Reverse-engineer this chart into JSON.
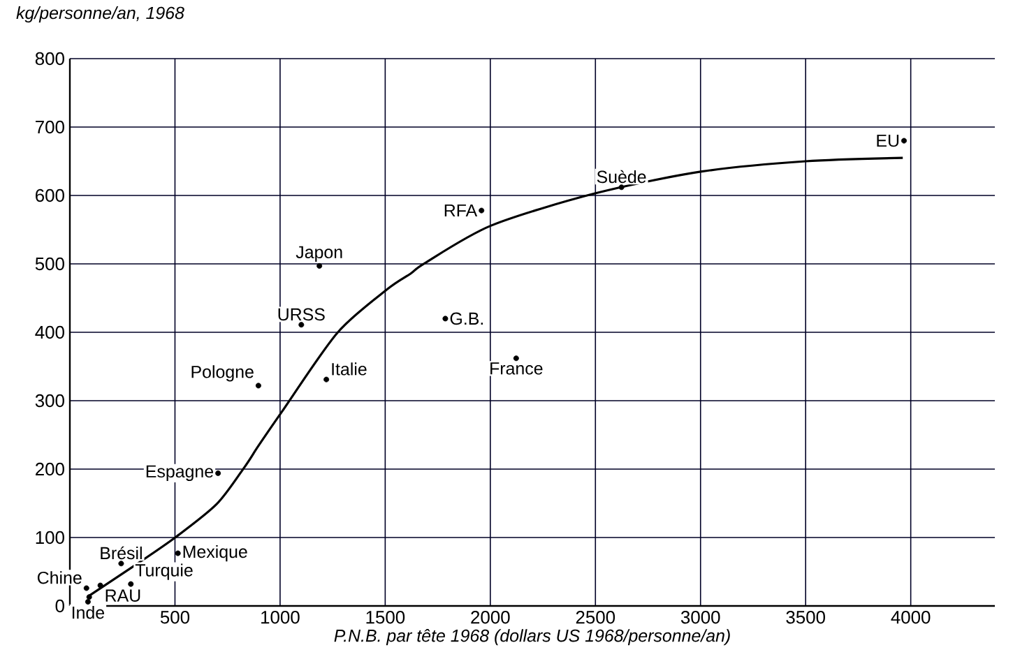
{
  "chart_data": {
    "type": "scatter",
    "ylabel": "kg/personne/an, 1968",
    "xlabel": "P.N.B. par tête 1968 (dollars US 1968/personne/an)",
    "xlim": [
      0,
      4400
    ],
    "ylim": [
      0,
      800
    ],
    "xticks": [
      500,
      1000,
      1500,
      2000,
      2500,
      3000,
      3500,
      4000
    ],
    "yticks": [
      0,
      100,
      200,
      300,
      400,
      500,
      600,
      700,
      800
    ],
    "grid": true,
    "series": [
      {
        "type": "scatter",
        "marker": "circle",
        "color": "#000000",
        "x": [
          79,
          145,
          86,
          92,
          244,
          290,
          514,
          705,
          897,
          1187,
          1101,
          1220,
          1786,
          2123,
          1958,
          2624,
          3968
        ],
        "values": [
          26,
          30,
          6,
          13,
          62,
          32,
          77,
          194,
          322,
          497,
          411,
          331,
          420,
          362,
          578,
          612,
          680
        ]
      },
      {
        "type": "line",
        "marker": "none",
        "line_style": "solid",
        "color": "#000000",
        "x": [
          92,
          303,
          501,
          699,
          831,
          897,
          1009,
          1272,
          1510,
          1622,
          1688,
          2004,
          2498,
          3006,
          3500,
          3962
        ],
        "values": [
          15,
          58,
          100,
          149,
          203,
          234,
          284,
          399,
          463,
          486,
          501,
          556,
          603,
          635,
          650,
          655
        ]
      }
    ],
    "annotations": [
      {
        "text": "Chine",
        "x": 79,
        "y": 26
      },
      {
        "text": "RAU",
        "x": 145,
        "y": 30
      },
      {
        "text": "Inde",
        "x": 86,
        "y": 6
      },
      {
        "text": "Brésil",
        "x": 244,
        "y": 62
      },
      {
        "text": "Turquie",
        "x": 290,
        "y": 32
      },
      {
        "text": "Mexique",
        "x": 514,
        "y": 77
      },
      {
        "text": "Espagne",
        "x": 705,
        "y": 194
      },
      {
        "text": "Pologne",
        "x": 897,
        "y": 322
      },
      {
        "text": "Japon",
        "x": 1187,
        "y": 497
      },
      {
        "text": "URSS",
        "x": 1101,
        "y": 411
      },
      {
        "text": "Italie",
        "x": 1220,
        "y": 331
      },
      {
        "text": "G.B.",
        "x": 1786,
        "y": 420
      },
      {
        "text": "France",
        "x": 2123,
        "y": 362
      },
      {
        "text": "RFA",
        "x": 1958,
        "y": 578
      },
      {
        "text": "Suède",
        "x": 2624,
        "y": 612
      },
      {
        "text": "EU",
        "x": 3968,
        "y": 680
      }
    ]
  }
}
